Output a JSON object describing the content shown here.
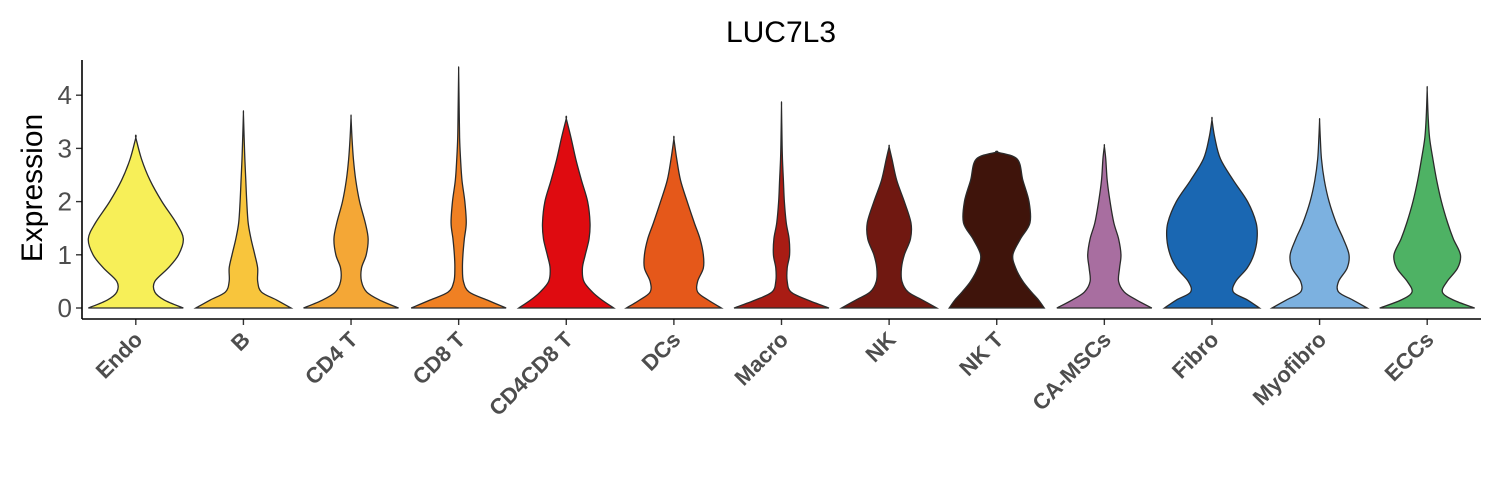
{
  "chart_data": {
    "type": "violin",
    "title": "LUC7L3",
    "xlabel": "",
    "ylabel": "Expression",
    "ylim": [
      -0.2,
      4.65
    ],
    "yticks": [
      0,
      1,
      2,
      3,
      4
    ],
    "grid": false,
    "legend": "none",
    "categories": [
      "Endo",
      "B",
      "CD4 T",
      "CD8 T",
      "CD4CD8 T",
      "DCs",
      "Macro",
      "NK",
      "NK T",
      "CA-MSCs",
      "Fibro",
      "Myofibro",
      "ECCs"
    ],
    "colors": [
      "#F7EF58",
      "#F8C53C",
      "#F4A736",
      "#F08023",
      "#DF0B10",
      "#E5581A",
      "#A91C14",
      "#701811",
      "#3F140B",
      "#A86EA0",
      "#1A67B2",
      "#7CB1E0",
      "#4EB264"
    ],
    "max_values": [
      3.2,
      3.65,
      3.58,
      4.45,
      3.56,
      3.18,
      3.8,
      3.03,
      2.93,
      3.04,
      3.54,
      3.52,
      4.1
    ],
    "density_profiles": [
      [
        [
          0,
          1.0
        ],
        [
          0.15,
          0.6
        ],
        [
          0.3,
          0.4
        ],
        [
          0.5,
          0.4
        ],
        [
          0.75,
          0.68
        ],
        [
          1.0,
          0.9
        ],
        [
          1.3,
          1.0
        ],
        [
          1.6,
          0.85
        ],
        [
          2.0,
          0.55
        ],
        [
          2.4,
          0.3
        ],
        [
          2.8,
          0.12
        ],
        [
          3.2,
          0.0
        ]
      ],
      [
        [
          0,
          1.0
        ],
        [
          0.15,
          0.7
        ],
        [
          0.3,
          0.38
        ],
        [
          0.5,
          0.3
        ],
        [
          0.75,
          0.3
        ],
        [
          1.0,
          0.24
        ],
        [
          1.3,
          0.16
        ],
        [
          1.6,
          0.1
        ],
        [
          2.0,
          0.07
        ],
        [
          2.4,
          0.05
        ],
        [
          2.8,
          0.03
        ],
        [
          3.2,
          0.015
        ],
        [
          3.65,
          0.0
        ]
      ],
      [
        [
          0,
          1.0
        ],
        [
          0.15,
          0.6
        ],
        [
          0.3,
          0.33
        ],
        [
          0.5,
          0.22
        ],
        [
          0.75,
          0.22
        ],
        [
          1.0,
          0.32
        ],
        [
          1.3,
          0.36
        ],
        [
          1.6,
          0.3
        ],
        [
          2.0,
          0.18
        ],
        [
          2.4,
          0.1
        ],
        [
          2.8,
          0.05
        ],
        [
          3.2,
          0.02
        ],
        [
          3.58,
          0.0
        ]
      ],
      [
        [
          0,
          1.0
        ],
        [
          0.15,
          0.6
        ],
        [
          0.3,
          0.22
        ],
        [
          0.5,
          0.1
        ],
        [
          0.75,
          0.08
        ],
        [
          1.0,
          0.09
        ],
        [
          1.3,
          0.12
        ],
        [
          1.6,
          0.16
        ],
        [
          2.0,
          0.13
        ],
        [
          2.4,
          0.07
        ],
        [
          2.8,
          0.04
        ],
        [
          3.2,
          0.02
        ],
        [
          3.8,
          0.01
        ],
        [
          4.45,
          0.0
        ]
      ],
      [
        [
          0,
          1.0
        ],
        [
          0.15,
          0.75
        ],
        [
          0.3,
          0.55
        ],
        [
          0.5,
          0.37
        ],
        [
          0.75,
          0.34
        ],
        [
          1.0,
          0.4
        ],
        [
          1.3,
          0.48
        ],
        [
          1.6,
          0.5
        ],
        [
          2.0,
          0.45
        ],
        [
          2.4,
          0.32
        ],
        [
          2.8,
          0.2
        ],
        [
          3.2,
          0.1
        ],
        [
          3.56,
          0.0
        ]
      ],
      [
        [
          0,
          1.0
        ],
        [
          0.15,
          0.72
        ],
        [
          0.3,
          0.5
        ],
        [
          0.5,
          0.5
        ],
        [
          0.75,
          0.62
        ],
        [
          1.0,
          0.62
        ],
        [
          1.3,
          0.55
        ],
        [
          1.6,
          0.43
        ],
        [
          2.0,
          0.28
        ],
        [
          2.4,
          0.14
        ],
        [
          2.8,
          0.06
        ],
        [
          3.18,
          0.0
        ]
      ],
      [
        [
          0,
          1.0
        ],
        [
          0.15,
          0.55
        ],
        [
          0.3,
          0.2
        ],
        [
          0.5,
          0.12
        ],
        [
          0.75,
          0.12
        ],
        [
          1.0,
          0.17
        ],
        [
          1.3,
          0.16
        ],
        [
          1.6,
          0.1
        ],
        [
          2.0,
          0.06
        ],
        [
          2.4,
          0.04
        ],
        [
          2.8,
          0.02
        ],
        [
          3.2,
          0.01
        ],
        [
          3.8,
          0.0
        ]
      ],
      [
        [
          0,
          1.0
        ],
        [
          0.15,
          0.7
        ],
        [
          0.3,
          0.4
        ],
        [
          0.5,
          0.27
        ],
        [
          0.75,
          0.26
        ],
        [
          1.0,
          0.32
        ],
        [
          1.3,
          0.45
        ],
        [
          1.6,
          0.46
        ],
        [
          2.0,
          0.32
        ],
        [
          2.4,
          0.16
        ],
        [
          2.8,
          0.06
        ],
        [
          3.03,
          0.0
        ]
      ],
      [
        [
          0,
          1.0
        ],
        [
          0.15,
          0.88
        ],
        [
          0.3,
          0.73
        ],
        [
          0.5,
          0.55
        ],
        [
          0.75,
          0.4
        ],
        [
          1.0,
          0.34
        ],
        [
          1.3,
          0.5
        ],
        [
          1.6,
          0.7
        ],
        [
          2.0,
          0.68
        ],
        [
          2.4,
          0.55
        ],
        [
          2.8,
          0.43
        ],
        [
          2.93,
          0.0
        ]
      ],
      [
        [
          0,
          1.0
        ],
        [
          0.15,
          0.68
        ],
        [
          0.3,
          0.42
        ],
        [
          0.5,
          0.3
        ],
        [
          0.75,
          0.32
        ],
        [
          1.0,
          0.35
        ],
        [
          1.3,
          0.3
        ],
        [
          1.6,
          0.2
        ],
        [
          2.0,
          0.12
        ],
        [
          2.4,
          0.06
        ],
        [
          2.8,
          0.03
        ],
        [
          3.04,
          0.0
        ]
      ],
      [
        [
          0,
          1.0
        ],
        [
          0.15,
          0.75
        ],
        [
          0.3,
          0.45
        ],
        [
          0.5,
          0.5
        ],
        [
          0.75,
          0.74
        ],
        [
          1.0,
          0.88
        ],
        [
          1.3,
          0.95
        ],
        [
          1.6,
          0.93
        ],
        [
          2.0,
          0.75
        ],
        [
          2.4,
          0.45
        ],
        [
          2.8,
          0.18
        ],
        [
          3.2,
          0.06
        ],
        [
          3.54,
          0.0
        ]
      ],
      [
        [
          0,
          1.0
        ],
        [
          0.15,
          0.7
        ],
        [
          0.3,
          0.4
        ],
        [
          0.5,
          0.4
        ],
        [
          0.75,
          0.58
        ],
        [
          1.0,
          0.62
        ],
        [
          1.3,
          0.5
        ],
        [
          1.6,
          0.35
        ],
        [
          2.0,
          0.2
        ],
        [
          2.4,
          0.1
        ],
        [
          2.8,
          0.04
        ],
        [
          3.2,
          0.015
        ],
        [
          3.52,
          0.0
        ]
      ],
      [
        [
          0,
          1.0
        ],
        [
          0.15,
          0.55
        ],
        [
          0.3,
          0.32
        ],
        [
          0.5,
          0.42
        ],
        [
          0.75,
          0.64
        ],
        [
          1.0,
          0.7
        ],
        [
          1.3,
          0.55
        ],
        [
          1.6,
          0.43
        ],
        [
          2.0,
          0.3
        ],
        [
          2.4,
          0.2
        ],
        [
          2.8,
          0.12
        ],
        [
          3.2,
          0.05
        ],
        [
          3.6,
          0.02
        ],
        [
          4.1,
          0.0
        ]
      ]
    ]
  }
}
